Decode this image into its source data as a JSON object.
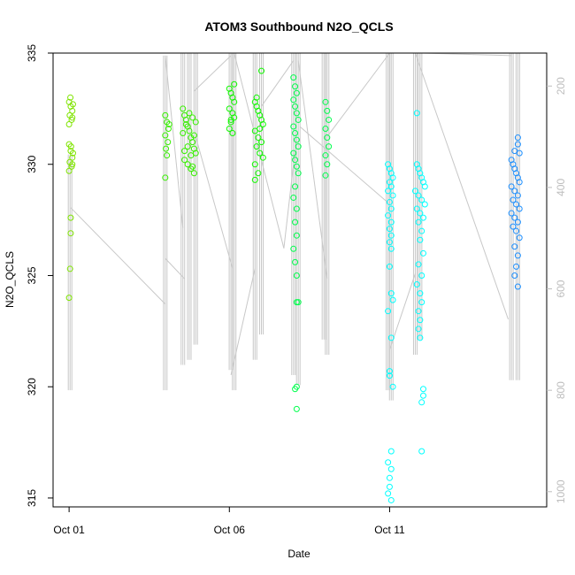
{
  "chart_data": {
    "type": "scatter",
    "title": "ATOM3 Southbound N2O_QCLS",
    "xlabel": "Date",
    "ylabel": "N2O_QCLS",
    "x_ticks": [
      {
        "day": 1,
        "label": "Oct 01"
      },
      {
        "day": 6,
        "label": "Oct 06"
      },
      {
        "day": 11,
        "label": "Oct 11"
      }
    ],
    "xlim_days": [
      0.5,
      15.9
    ],
    "ylim": [
      314.6,
      335
    ],
    "y_ticks": [
      315,
      320,
      325,
      330,
      335
    ],
    "right_axis": {
      "description": "pressure trace (grey lines)",
      "ticks": [
        200,
        400,
        600,
        800,
        1000
      ],
      "range": [
        1030,
        135
      ],
      "color": "#bdbdbd"
    },
    "pressure_profiles": [
      {
        "day": 1.03,
        "top": 335,
        "bottom": 800
      },
      {
        "day": 4.0,
        "top": 140,
        "bottom": 800
      },
      {
        "day": 4.55,
        "top": 135,
        "bottom": 750
      },
      {
        "day": 4.75,
        "top": 135,
        "bottom": 740
      },
      {
        "day": 4.95,
        "top": 135,
        "bottom": 710
      },
      {
        "day": 6.05,
        "top": 135,
        "bottom": 760
      },
      {
        "day": 6.15,
        "top": 135,
        "bottom": 800
      },
      {
        "day": 6.8,
        "top": 135,
        "bottom": 740
      },
      {
        "day": 7.0,
        "top": 135,
        "bottom": 690
      },
      {
        "day": 8.0,
        "top": 135,
        "bottom": 770
      },
      {
        "day": 8.15,
        "top": 135,
        "bottom": 790
      },
      {
        "day": 8.95,
        "top": 135,
        "bottom": 700
      },
      {
        "day": 9.05,
        "top": 135,
        "bottom": 730
      },
      {
        "day": 10.95,
        "top": 135,
        "bottom": 800
      },
      {
        "day": 11.05,
        "top": 135,
        "bottom": 820
      },
      {
        "day": 11.8,
        "top": 135,
        "bottom": 730
      },
      {
        "day": 11.95,
        "top": 135,
        "bottom": 700
      },
      {
        "day": 14.8,
        "top": 135,
        "bottom": 780
      },
      {
        "day": 15.0,
        "top": 135,
        "bottom": 780
      }
    ],
    "pressure_transits": [
      {
        "from": [
          1.05,
          440
        ],
        "to": [
          4.0,
          630
        ]
      },
      {
        "from": [
          4.0,
          140
        ],
        "to": [
          4.55,
          480
        ]
      },
      {
        "from": [
          4.0,
          540
        ],
        "to": [
          4.6,
          580
        ]
      },
      {
        "from": [
          4.9,
          210
        ],
        "to": [
          6.05,
          140
        ]
      },
      {
        "from": [
          4.95,
          300
        ],
        "to": [
          6.1,
          560
        ]
      },
      {
        "from": [
          6.05,
          770
        ],
        "to": [
          6.8,
          560
        ]
      },
      {
        "from": [
          6.15,
          135
        ],
        "to": [
          7.7,
          520
        ]
      },
      {
        "from": [
          7.0,
          240
        ],
        "to": [
          8.0,
          150
        ]
      },
      {
        "from": [
          7.7,
          520
        ],
        "to": [
          8.1,
          300
        ]
      },
      {
        "from": [
          8.15,
          150
        ],
        "to": [
          9.05,
          580
        ]
      },
      {
        "from": [
          8.2,
          280
        ],
        "to": [
          10.95,
          430
        ]
      },
      {
        "from": [
          9.05,
          300
        ],
        "to": [
          11.0,
          135
        ]
      },
      {
        "from": [
          11.0,
          720
        ],
        "to": [
          11.8,
          570
        ]
      },
      {
        "from": [
          11.8,
          135
        ],
        "to": [
          14.7,
          660
        ]
      },
      {
        "from": [
          12.0,
          135
        ],
        "to": [
          14.8,
          140
        ]
      }
    ],
    "series": [
      {
        "color": "#7fe400",
        "points": [
          [
            1.0,
            332.8
          ],
          [
            1.05,
            332.6
          ],
          [
            1.1,
            332.4
          ],
          [
            1.02,
            332.2
          ],
          [
            1.08,
            332.0
          ],
          [
            1.0,
            331.8
          ],
          [
            1.12,
            332.7
          ],
          [
            1.04,
            333.0
          ],
          [
            1.1,
            332.1
          ],
          [
            1.0,
            330.9
          ],
          [
            1.05,
            330.6
          ],
          [
            1.1,
            330.3
          ],
          [
            1.02,
            330.1
          ],
          [
            1.08,
            329.9
          ],
          [
            1.0,
            329.7
          ],
          [
            1.12,
            330.5
          ],
          [
            1.06,
            330.8
          ],
          [
            1.1,
            330.0
          ],
          [
            1.05,
            327.6
          ],
          [
            1.05,
            326.9
          ],
          [
            1.03,
            325.3
          ],
          [
            1.0,
            324.0
          ]
        ]
      },
      {
        "color": "#37f000",
        "points": [
          [
            4.0,
            332.2
          ],
          [
            4.05,
            331.9
          ],
          [
            4.1,
            331.6
          ],
          [
            4.0,
            331.3
          ],
          [
            4.08,
            331.0
          ],
          [
            4.02,
            330.7
          ],
          [
            4.12,
            331.8
          ],
          [
            4.05,
            330.4
          ],
          [
            4.0,
            329.4
          ],
          [
            4.55,
            332.5
          ],
          [
            4.6,
            332.2
          ],
          [
            4.65,
            332.0
          ],
          [
            4.7,
            331.7
          ],
          [
            4.75,
            331.5
          ],
          [
            4.8,
            331.2
          ],
          [
            4.85,
            331.0
          ],
          [
            4.9,
            330.7
          ],
          [
            4.95,
            330.5
          ],
          [
            4.6,
            330.2
          ],
          [
            4.7,
            330.0
          ],
          [
            4.8,
            329.8
          ],
          [
            4.9,
            329.6
          ],
          [
            4.65,
            331.8
          ],
          [
            4.75,
            332.3
          ],
          [
            4.85,
            332.1
          ],
          [
            4.95,
            331.9
          ],
          [
            4.55,
            331.4
          ],
          [
            4.7,
            330.8
          ],
          [
            4.8,
            330.4
          ],
          [
            4.9,
            331.3
          ],
          [
            4.6,
            330.6
          ],
          [
            4.85,
            329.9
          ]
        ]
      },
      {
        "color": "#11f900",
        "points": [
          [
            6.0,
            333.4
          ],
          [
            6.05,
            333.2
          ],
          [
            6.1,
            333.0
          ],
          [
            6.15,
            332.8
          ],
          [
            6.0,
            332.5
          ],
          [
            6.1,
            332.3
          ],
          [
            6.15,
            332.1
          ],
          [
            6.05,
            331.9
          ],
          [
            6.0,
            331.6
          ],
          [
            6.1,
            331.4
          ],
          [
            6.15,
            333.6
          ],
          [
            6.05,
            332.0
          ],
          [
            6.8,
            332.8
          ],
          [
            6.85,
            332.6
          ],
          [
            6.9,
            332.4
          ],
          [
            6.95,
            332.2
          ],
          [
            7.0,
            332.0
          ],
          [
            7.05,
            331.8
          ],
          [
            6.8,
            331.5
          ],
          [
            6.9,
            331.2
          ],
          [
            7.0,
            331.0
          ],
          [
            6.85,
            330.8
          ],
          [
            6.95,
            330.5
          ],
          [
            7.05,
            330.3
          ],
          [
            6.8,
            330.0
          ],
          [
            6.9,
            329.6
          ],
          [
            7.0,
            334.2
          ],
          [
            6.85,
            333.0
          ],
          [
            6.95,
            331.6
          ],
          [
            6.8,
            329.3
          ]
        ]
      },
      {
        "color": "#00ff4d",
        "points": [
          [
            8.0,
            333.9
          ],
          [
            8.05,
            333.5
          ],
          [
            8.1,
            333.2
          ],
          [
            8.0,
            332.9
          ],
          [
            8.05,
            332.6
          ],
          [
            8.1,
            332.3
          ],
          [
            8.15,
            332.0
          ],
          [
            8.0,
            331.7
          ],
          [
            8.05,
            331.4
          ],
          [
            8.1,
            331.1
          ],
          [
            8.15,
            330.8
          ],
          [
            8.0,
            330.5
          ],
          [
            8.05,
            330.2
          ],
          [
            8.1,
            329.9
          ],
          [
            8.15,
            329.6
          ],
          [
            8.05,
            329.0
          ],
          [
            8.0,
            328.5
          ],
          [
            8.1,
            328.0
          ],
          [
            8.05,
            327.4
          ],
          [
            8.1,
            326.8
          ],
          [
            8.0,
            326.2
          ],
          [
            8.05,
            325.6
          ],
          [
            8.1,
            325.0
          ],
          [
            8.15,
            323.8
          ],
          [
            8.1,
            323.8
          ],
          [
            9.0,
            332.8
          ],
          [
            9.05,
            332.4
          ],
          [
            9.1,
            332.0
          ],
          [
            9.0,
            331.6
          ],
          [
            9.05,
            331.2
          ],
          [
            9.1,
            330.8
          ],
          [
            9.0,
            330.4
          ],
          [
            9.05,
            330.0
          ],
          [
            9.0,
            329.5
          ],
          [
            8.1,
            320.0
          ],
          [
            8.05,
            319.9
          ],
          [
            8.1,
            319.0
          ]
        ]
      },
      {
        "color": "#00ffff",
        "points": [
          [
            10.95,
            330.0
          ],
          [
            11.0,
            329.8
          ],
          [
            11.05,
            329.6
          ],
          [
            11.1,
            329.4
          ],
          [
            11.0,
            329.2
          ],
          [
            11.05,
            329.0
          ],
          [
            10.95,
            328.8
          ],
          [
            11.1,
            328.6
          ],
          [
            11.0,
            328.3
          ],
          [
            11.05,
            328.0
          ],
          [
            10.95,
            327.7
          ],
          [
            11.05,
            327.4
          ],
          [
            11.0,
            327.1
          ],
          [
            11.05,
            326.8
          ],
          [
            11.0,
            326.5
          ],
          [
            11.05,
            326.2
          ],
          [
            11.0,
            325.4
          ],
          [
            11.05,
            324.2
          ],
          [
            11.1,
            323.9
          ],
          [
            10.95,
            323.4
          ],
          [
            11.05,
            322.2
          ],
          [
            11.0,
            320.7
          ],
          [
            11.0,
            320.5
          ],
          [
            11.1,
            320.0
          ],
          [
            11.85,
            330.0
          ],
          [
            11.9,
            329.8
          ],
          [
            11.95,
            329.6
          ],
          [
            12.0,
            329.4
          ],
          [
            12.05,
            329.2
          ],
          [
            12.1,
            329.0
          ],
          [
            11.8,
            328.8
          ],
          [
            11.9,
            328.6
          ],
          [
            12.0,
            328.4
          ],
          [
            12.1,
            328.2
          ],
          [
            11.85,
            328.0
          ],
          [
            11.95,
            327.8
          ],
          [
            12.05,
            327.6
          ],
          [
            11.9,
            327.4
          ],
          [
            12.0,
            327.0
          ],
          [
            11.95,
            326.6
          ],
          [
            12.05,
            326.0
          ],
          [
            11.9,
            325.5
          ],
          [
            12.0,
            325.0
          ],
          [
            11.85,
            324.6
          ],
          [
            11.95,
            324.2
          ],
          [
            12.0,
            323.8
          ],
          [
            11.9,
            323.4
          ],
          [
            11.95,
            323.0
          ],
          [
            11.9,
            322.6
          ],
          [
            11.95,
            322.2
          ],
          [
            11.85,
            332.3
          ],
          [
            12.05,
            319.9
          ],
          [
            12.05,
            319.6
          ],
          [
            12.0,
            319.3
          ],
          [
            12.0,
            317.1
          ],
          [
            11.05,
            317.1
          ],
          [
            10.95,
            316.6
          ],
          [
            11.05,
            316.3
          ],
          [
            11.0,
            315.9
          ],
          [
            11.0,
            315.5
          ],
          [
            10.95,
            315.2
          ],
          [
            11.05,
            314.9
          ]
        ]
      },
      {
        "color": "#1e90ff",
        "points": [
          [
            14.8,
            330.2
          ],
          [
            14.85,
            330.0
          ],
          [
            14.9,
            329.8
          ],
          [
            14.95,
            329.6
          ],
          [
            15.0,
            329.4
          ],
          [
            15.05,
            329.2
          ],
          [
            14.8,
            329.0
          ],
          [
            14.9,
            328.8
          ],
          [
            15.0,
            328.6
          ],
          [
            14.85,
            328.4
          ],
          [
            14.95,
            328.2
          ],
          [
            15.05,
            328.0
          ],
          [
            14.8,
            327.8
          ],
          [
            14.9,
            327.6
          ],
          [
            15.0,
            327.4
          ],
          [
            14.85,
            327.2
          ],
          [
            14.95,
            327.0
          ],
          [
            15.05,
            326.7
          ],
          [
            14.9,
            326.3
          ],
          [
            15.0,
            325.9
          ],
          [
            14.95,
            325.4
          ],
          [
            14.9,
            325.0
          ],
          [
            15.0,
            324.5
          ],
          [
            15.0,
            331.2
          ],
          [
            15.05,
            330.5
          ],
          [
            14.9,
            330.6
          ],
          [
            15.0,
            330.9
          ]
        ]
      }
    ]
  }
}
